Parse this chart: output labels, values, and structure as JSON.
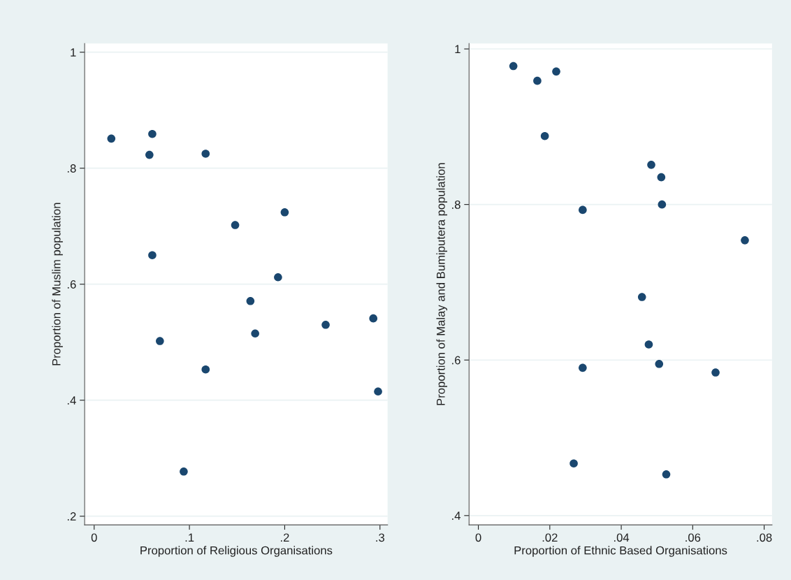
{
  "chart_data": [
    {
      "type": "scatter",
      "xlabel": "Proportion of Religious Organisations",
      "ylabel": "Proportion of Muslim population",
      "marker": "circle",
      "grid": "y",
      "x": [
        0.018,
        0.061,
        0.058,
        0.117,
        0.148,
        0.2,
        0.061,
        0.193,
        0.164,
        0.169,
        0.243,
        0.293,
        0.069,
        0.117,
        0.298,
        0.094
      ],
      "series": [
        {
          "color": "#1a476f",
          "values": [
            0.851,
            0.859,
            0.823,
            0.825,
            0.702,
            0.724,
            0.65,
            0.612,
            0.571,
            0.515,
            0.53,
            0.541,
            0.502,
            0.453,
            0.415,
            0.277
          ]
        }
      ],
      "xlim": [
        -0.01,
        0.308
      ],
      "ylim": [
        0.185,
        1.015
      ],
      "xticks": [
        {
          "value": 0,
          "label": "0"
        },
        {
          "value": 0.1,
          "label": ".1"
        },
        {
          "value": 0.2,
          "label": ".2"
        },
        {
          "value": 0.3,
          "label": ".3"
        }
      ],
      "yticks": [
        {
          "value": 0.2,
          "label": ".2"
        },
        {
          "value": 0.4,
          "label": ".4"
        },
        {
          "value": 0.6,
          "label": ".6"
        },
        {
          "value": 0.8,
          "label": ".8"
        },
        {
          "value": 1,
          "label": "1"
        }
      ]
    },
    {
      "type": "scatter",
      "xlabel": "Proportion of Ethnic Based Organisations",
      "ylabel": "Proportion of Malay and Bumiputera population",
      "marker": "circle",
      "grid": "y",
      "x": [
        0.0098,
        0.0165,
        0.0218,
        0.0186,
        0.0484,
        0.0512,
        0.0514,
        0.0292,
        0.0746,
        0.0458,
        0.0477,
        0.0506,
        0.0292,
        0.0664,
        0.0267,
        0.0526
      ],
      "series": [
        {
          "color": "#1a476f",
          "values": [
            0.978,
            0.959,
            0.971,
            0.888,
            0.851,
            0.835,
            0.8,
            0.793,
            0.754,
            0.681,
            0.62,
            0.595,
            0.59,
            0.584,
            0.467,
            0.453
          ]
        }
      ],
      "xlim": [
        -0.0026,
        0.0822
      ],
      "ylim": [
        0.388,
        1.007
      ],
      "xticks": [
        {
          "value": 0,
          "label": "0"
        },
        {
          "value": 0.02,
          "label": ".02"
        },
        {
          "value": 0.04,
          "label": ".04"
        },
        {
          "value": 0.06,
          "label": ".06"
        },
        {
          "value": 0.08,
          "label": ".08"
        }
      ],
      "yticks": [
        {
          "value": 0.4,
          "label": ".4"
        },
        {
          "value": 0.6,
          "label": ".6"
        },
        {
          "value": 0.8,
          "label": ".8"
        },
        {
          "value": 1,
          "label": "1"
        }
      ]
    }
  ]
}
